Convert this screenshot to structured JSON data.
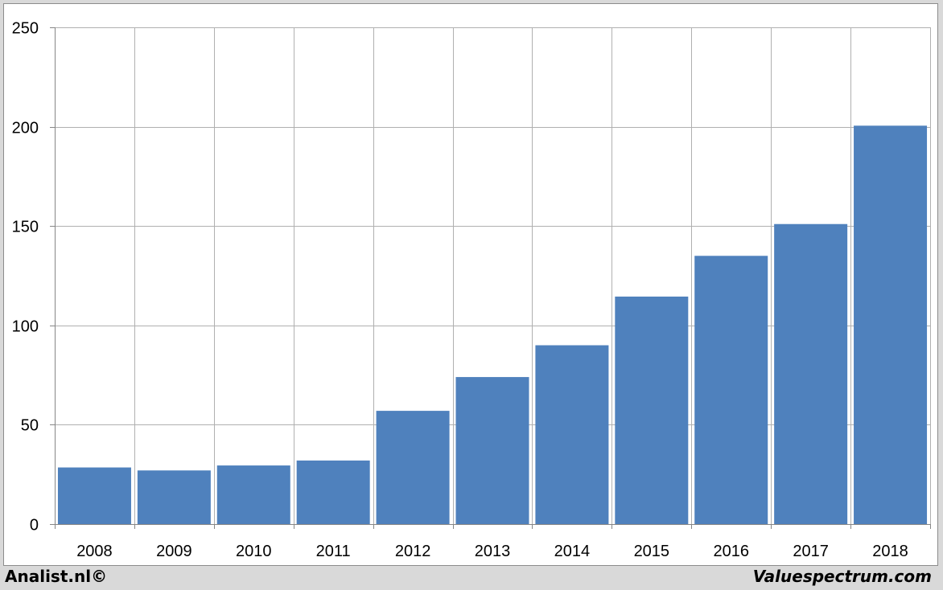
{
  "chart_data": {
    "type": "bar",
    "title": "",
    "xlabel": "",
    "ylabel": "",
    "categories": [
      "2008",
      "2009",
      "2010",
      "2011",
      "2012",
      "2013",
      "2014",
      "2015",
      "2016",
      "2017",
      "2018"
    ],
    "values": [
      28.5,
      27,
      29.5,
      32,
      57,
      74,
      90,
      114.5,
      135,
      151,
      200.5
    ],
    "ylim": [
      0,
      250
    ],
    "yticks": [
      "0",
      "50",
      "100",
      "150",
      "200",
      "250"
    ],
    "grid": true,
    "legend": "none",
    "colors": {
      "bar": "#4f81bd",
      "grid": "#b0b0b0",
      "axis": "#868686"
    }
  },
  "footer": {
    "left_text": "Analist.nl©",
    "right_text": "Valuespectrum.com"
  }
}
